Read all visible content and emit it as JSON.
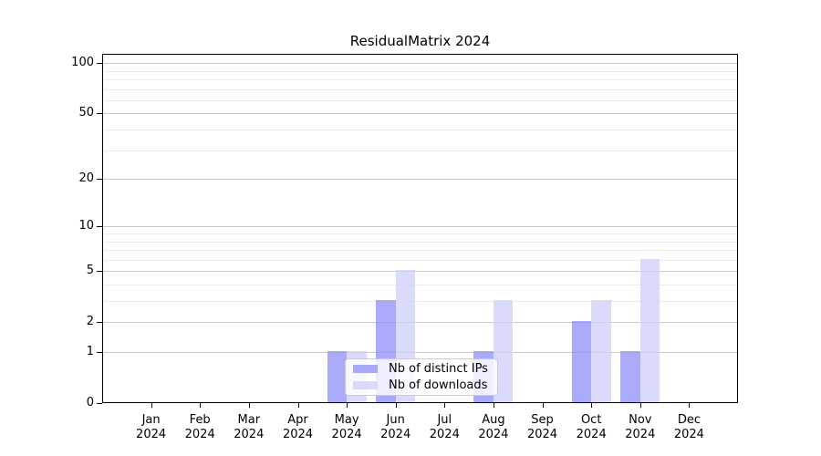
{
  "chart_data": {
    "type": "bar",
    "title": "ResidualMatrix 2024",
    "categories": [
      "Jan",
      "Feb",
      "Mar",
      "Apr",
      "May",
      "Jun",
      "Jul",
      "Aug",
      "Sep",
      "Oct",
      "Nov",
      "Dec"
    ],
    "year_label": "2024",
    "series": [
      {
        "name": "Nb of distinct IPs",
        "color": "#9595f9",
        "alpha": 0.8,
        "values": [
          0,
          0,
          0,
          0,
          1,
          3,
          0,
          1,
          0,
          2,
          1,
          0
        ]
      },
      {
        "name": "Nb of downloads",
        "color": "#d1d1f9",
        "alpha": 0.8,
        "values": [
          0,
          0,
          0,
          0,
          1,
          5,
          0,
          3,
          0,
          3,
          6,
          0
        ]
      }
    ],
    "yscale": "log1p",
    "ylim": [
      0,
      113.6
    ],
    "y_major_ticks": [
      100,
      50,
      20,
      10,
      5,
      2,
      1,
      0
    ],
    "y_minor_ticks": [
      3,
      4,
      6,
      7,
      8,
      9,
      30,
      40,
      60,
      70,
      80,
      90
    ],
    "grid": "both",
    "legend_position": "lower left of plot, overlapping May-Aug bars",
    "colors": {
      "grid_major": "#c9c9c9",
      "grid_minor": "#ececec",
      "spine": "#000000",
      "text": "#000000",
      "legend_border": "#cccccc",
      "background": "#ffffff"
    }
  }
}
